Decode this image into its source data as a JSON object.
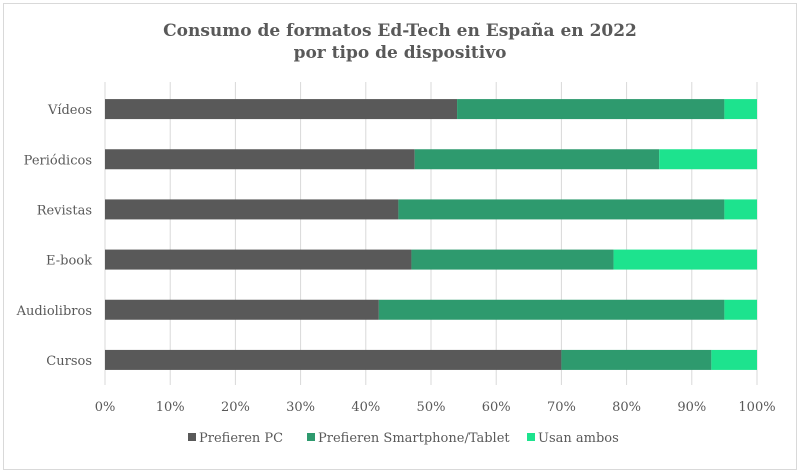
{
  "chart_data": {
    "type": "bar",
    "orientation": "horizontal",
    "stacked": "percent",
    "title": [
      "Consumo de formatos Ed-Tech en España en 2022",
      "por tipo de dispositivo"
    ],
    "xlabel": "",
    "ylabel": "",
    "xlim": [
      0,
      100
    ],
    "x_ticks": [
      "0%",
      "10%",
      "20%",
      "30%",
      "40%",
      "50%",
      "60%",
      "70%",
      "80%",
      "90%",
      "100%"
    ],
    "grid": "vertical",
    "legend_position": "bottom",
    "categories": [
      "Vídeos",
      "Periódicos",
      "Revistas",
      "E-book",
      "Audiolibros",
      "Cursos"
    ],
    "series": [
      {
        "name": "Prefieren PC",
        "color": "#595959",
        "values": [
          54,
          47.5,
          45,
          47,
          42,
          70
        ]
      },
      {
        "name": "Prefieren Smartphone/Tablet",
        "color": "#2e9a6e",
        "values": [
          41,
          37.5,
          50,
          31,
          53,
          23
        ]
      },
      {
        "name": "Usan ambos",
        "color": "#1de38e",
        "values": [
          5,
          15,
          5,
          22,
          5,
          7
        ]
      }
    ]
  }
}
